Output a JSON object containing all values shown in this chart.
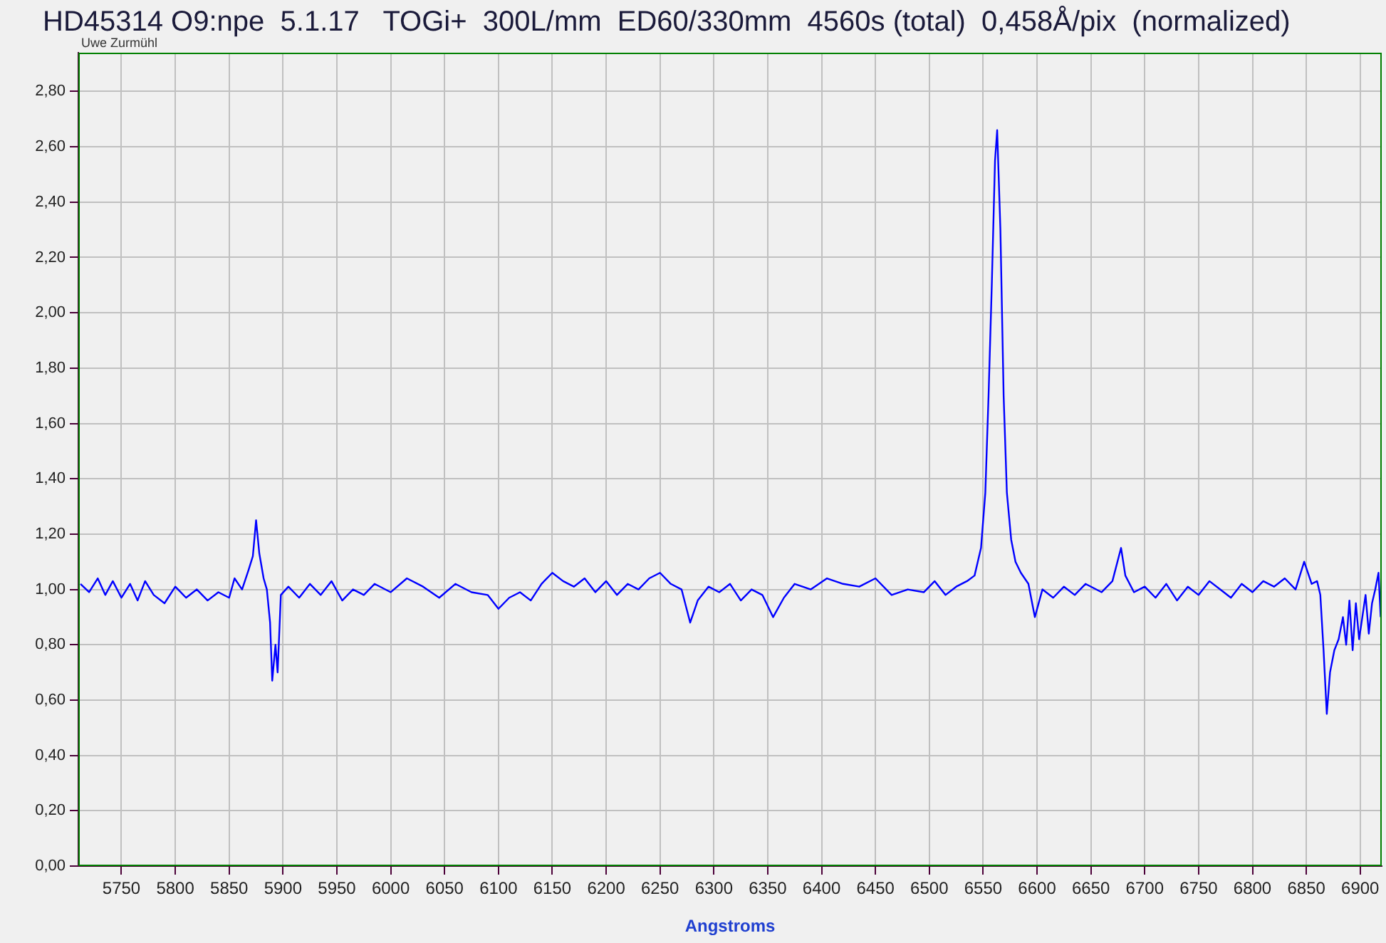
{
  "chart_data": {
    "type": "line",
    "title": "HD45314 O9:npe  5.1.17   TOGi+  300L/mm  ED60/330mm  4560s (total)  0,458Å/pix  (normalized)",
    "xlabel": "Angstroms",
    "annotations": [
      "Uwe Zurmühl"
    ],
    "x": [
      5712,
      5720,
      5728,
      5735,
      5742,
      5750,
      5758,
      5765,
      5772,
      5780,
      5790,
      5800,
      5810,
      5820,
      5830,
      5840,
      5850,
      5855,
      5862,
      5868,
      5872,
      5875,
      5878,
      5882,
      5885,
      5888,
      5890,
      5893,
      5895,
      5898,
      5905,
      5915,
      5925,
      5935,
      5945,
      5955,
      5965,
      5975,
      5985,
      6000,
      6015,
      6030,
      6045,
      6060,
      6075,
      6090,
      6100,
      6110,
      6120,
      6130,
      6140,
      6150,
      6160,
      6170,
      6180,
      6190,
      6200,
      6210,
      6220,
      6230,
      6240,
      6250,
      6260,
      6270,
      6278,
      6285,
      6295,
      6305,
      6315,
      6325,
      6335,
      6345,
      6355,
      6365,
      6375,
      6390,
      6405,
      6420,
      6435,
      6450,
      6465,
      6480,
      6495,
      6505,
      6515,
      6525,
      6535,
      6542,
      6548,
      6552,
      6555,
      6558,
      6561,
      6563,
      6566,
      6569,
      6572,
      6576,
      6580,
      6585,
      6592,
      6598,
      6605,
      6615,
      6625,
      6635,
      6645,
      6660,
      6670,
      6678,
      6682,
      6690,
      6700,
      6710,
      6720,
      6730,
      6740,
      6750,
      6760,
      6770,
      6780,
      6790,
      6800,
      6810,
      6820,
      6830,
      6840,
      6848,
      6855,
      6860,
      6863,
      6866,
      6869,
      6872,
      6876,
      6880,
      6884,
      6887,
      6890,
      6893,
      6896,
      6899,
      6902,
      6905,
      6908,
      6911,
      6914,
      6917,
      6919
    ],
    "series": [
      {
        "color": "#0000ff",
        "values": [
          1.02,
          0.99,
          1.04,
          0.98,
          1.03,
          0.97,
          1.02,
          0.96,
          1.03,
          0.98,
          0.95,
          1.01,
          0.97,
          1.0,
          0.96,
          0.99,
          0.97,
          1.04,
          1.0,
          1.07,
          1.12,
          1.25,
          1.13,
          1.04,
          1.0,
          0.88,
          0.67,
          0.8,
          0.7,
          0.98,
          1.01,
          0.97,
          1.02,
          0.98,
          1.03,
          0.96,
          1.0,
          0.98,
          1.02,
          0.99,
          1.04,
          1.01,
          0.97,
          1.02,
          0.99,
          0.98,
          0.93,
          0.97,
          0.99,
          0.96,
          1.02,
          1.06,
          1.03,
          1.01,
          1.04,
          0.99,
          1.03,
          0.98,
          1.02,
          1.0,
          1.04,
          1.06,
          1.02,
          1.0,
          0.88,
          0.96,
          1.01,
          0.99,
          1.02,
          0.96,
          1.0,
          0.98,
          0.9,
          0.97,
          1.02,
          1.0,
          1.04,
          1.02,
          1.01,
          1.04,
          0.98,
          1.0,
          0.99,
          1.03,
          0.98,
          1.01,
          1.03,
          1.05,
          1.15,
          1.35,
          1.7,
          2.1,
          2.55,
          2.66,
          2.3,
          1.7,
          1.35,
          1.18,
          1.1,
          1.06,
          1.02,
          0.9,
          1.0,
          0.97,
          1.01,
          0.98,
          1.02,
          0.99,
          1.03,
          1.15,
          1.05,
          0.99,
          1.01,
          0.97,
          1.02,
          0.96,
          1.01,
          0.98,
          1.03,
          1.0,
          0.97,
          1.02,
          0.99,
          1.03,
          1.01,
          1.04,
          1.0,
          1.1,
          1.02,
          1.03,
          0.98,
          0.78,
          0.55,
          0.7,
          0.78,
          0.82,
          0.9,
          0.8,
          0.96,
          0.78,
          0.95,
          0.82,
          0.9,
          0.98,
          0.84,
          0.95,
          1.0,
          1.06,
          0.9
        ]
      }
    ],
    "xlim": [
      5710,
      6920
    ],
    "ylim": [
      0,
      2.94
    ],
    "xticks": [
      5750,
      5800,
      5850,
      5900,
      5950,
      6000,
      6050,
      6100,
      6150,
      6200,
      6250,
      6300,
      6350,
      6400,
      6450,
      6500,
      6550,
      6600,
      6650,
      6700,
      6750,
      6800,
      6850,
      6900
    ],
    "yticks": [
      {
        "value": 0,
        "label": "0,00"
      },
      {
        "value": 0.2,
        "label": "0,20"
      },
      {
        "value": 0.4,
        "label": "0,40"
      },
      {
        "value": 0.6,
        "label": "0,60"
      },
      {
        "value": 0.8,
        "label": "0,80"
      },
      {
        "value": 1.0,
        "label": "1,00"
      },
      {
        "value": 1.2,
        "label": "1,20"
      },
      {
        "value": 1.4,
        "label": "1,40"
      },
      {
        "value": 1.6,
        "label": "1,60"
      },
      {
        "value": 1.8,
        "label": "1,80"
      },
      {
        "value": 2.0,
        "label": "2,00"
      },
      {
        "value": 2.2,
        "label": "2,20"
      },
      {
        "value": 2.4,
        "label": "2,40"
      },
      {
        "value": 2.6,
        "label": "2,60"
      },
      {
        "value": 2.8,
        "label": "2,80"
      }
    ],
    "grid": true,
    "marker": "none",
    "line_style": "solid"
  }
}
